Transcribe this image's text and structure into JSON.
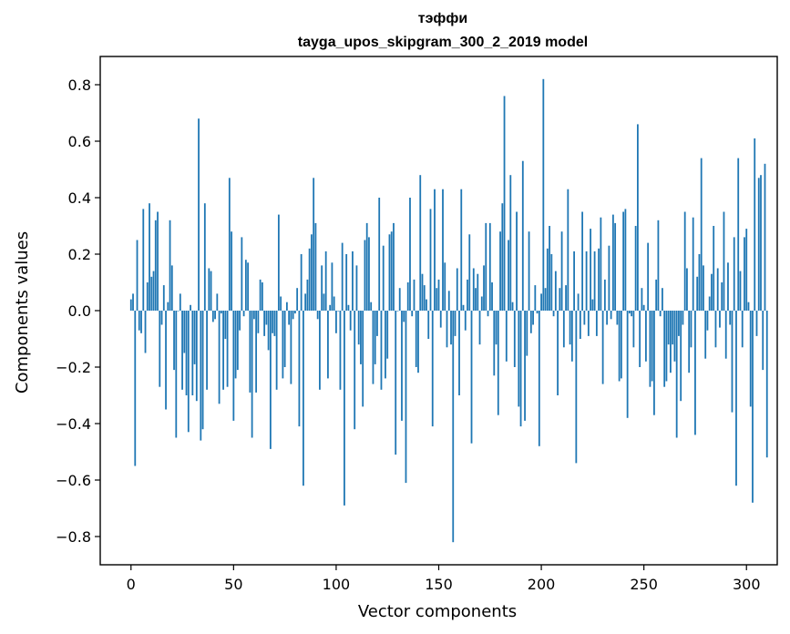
{
  "chart_data": {
    "type": "bar",
    "title_line1": "тэффи",
    "title_line2": "tayga_upos_skipgram_300_2_2019 model",
    "xlabel": "Vector components",
    "ylabel": "Components values",
    "xlim": [
      -15,
      315
    ],
    "ylim": [
      -0.9,
      0.9
    ],
    "xticks": [
      0,
      50,
      100,
      150,
      200,
      250,
      300
    ],
    "yticks": [
      -0.8,
      -0.6,
      -0.4,
      -0.2,
      0.0,
      0.2,
      0.4,
      0.6,
      0.8
    ],
    "ytick_labels": [
      "−0.8",
      "−0.6",
      "−0.4",
      "−0.2",
      "0.0",
      "0.2",
      "0.4",
      "0.6",
      "0.8"
    ],
    "bar_color": "#1f77b4",
    "values": [
      0.04,
      0.06,
      -0.55,
      0.25,
      -0.07,
      -0.08,
      0.36,
      -0.15,
      0.1,
      0.38,
      0.12,
      0.14,
      0.32,
      0.35,
      -0.27,
      -0.05,
      0.09,
      -0.35,
      0.03,
      0.32,
      0.16,
      -0.21,
      -0.45,
      0.0,
      0.06,
      -0.28,
      -0.15,
      -0.3,
      -0.43,
      0.02,
      -0.3,
      -0.19,
      -0.32,
      0.68,
      -0.46,
      -0.42,
      0.38,
      -0.28,
      0.15,
      0.14,
      -0.04,
      -0.03,
      0.06,
      -0.33,
      -0.01,
      -0.28,
      -0.1,
      -0.27,
      0.47,
      0.28,
      -0.39,
      -0.24,
      -0.21,
      -0.07,
      0.26,
      -0.02,
      0.18,
      0.17,
      -0.29,
      -0.45,
      -0.03,
      -0.29,
      -0.08,
      0.11,
      0.1,
      -0.09,
      -0.05,
      -0.14,
      -0.49,
      -0.08,
      -0.09,
      -0.28,
      0.34,
      0.05,
      -0.24,
      -0.2,
      0.03,
      -0.05,
      -0.26,
      -0.03,
      -0.01,
      0.08,
      -0.41,
      0.2,
      -0.62,
      0.06,
      0.11,
      0.22,
      0.27,
      0.47,
      0.31,
      -0.03,
      -0.28,
      0.16,
      0.06,
      0.21,
      -0.24,
      0.02,
      0.17,
      0.05,
      -0.08,
      0.0,
      -0.28,
      0.24,
      -0.69,
      0.2,
      0.02,
      -0.07,
      0.21,
      -0.42,
      0.16,
      -0.12,
      -0.19,
      -0.34,
      0.25,
      0.31,
      0.26,
      0.03,
      -0.26,
      -0.19,
      -0.09,
      0.4,
      -0.28,
      0.23,
      -0.24,
      -0.17,
      0.27,
      0.28,
      0.31,
      -0.51,
      0.0,
      0.08,
      -0.39,
      -0.04,
      -0.61,
      0.1,
      0.4,
      -0.02,
      0.11,
      -0.2,
      -0.22,
      0.48,
      0.13,
      0.09,
      0.04,
      -0.1,
      0.36,
      -0.41,
      0.43,
      0.08,
      0.11,
      -0.06,
      0.43,
      0.17,
      -0.13,
      0.07,
      -0.12,
      -0.82,
      -0.09,
      0.15,
      -0.3,
      0.43,
      0.02,
      -0.07,
      0.11,
      0.27,
      -0.47,
      0.15,
      0.08,
      0.13,
      -0.12,
      0.05,
      0.16,
      0.31,
      -0.02,
      0.31,
      0.1,
      -0.23,
      -0.12,
      -0.37,
      0.28,
      0.38,
      0.76,
      -0.18,
      0.25,
      0.48,
      0.03,
      -0.2,
      0.35,
      -0.34,
      -0.41,
      0.53,
      -0.39,
      -0.16,
      0.28,
      -0.08,
      -0.05,
      0.09,
      -0.01,
      -0.48,
      0.06,
      0.82,
      0.08,
      0.22,
      0.3,
      0.2,
      -0.02,
      0.14,
      -0.3,
      0.08,
      0.28,
      -0.13,
      0.09,
      0.43,
      -0.12,
      -0.18,
      0.21,
      -0.54,
      0.06,
      -0.1,
      0.35,
      -0.05,
      0.21,
      -0.09,
      0.29,
      0.04,
      0.21,
      -0.09,
      0.22,
      0.33,
      -0.26,
      0.11,
      -0.05,
      0.23,
      -0.03,
      0.34,
      0.31,
      -0.05,
      -0.25,
      -0.24,
      0.35,
      0.36,
      -0.38,
      -0.01,
      -0.02,
      -0.13,
      0.3,
      0.66,
      -0.2,
      0.08,
      0.02,
      -0.18,
      0.24,
      -0.27,
      -0.25,
      -0.37,
      0.11,
      0.32,
      -0.02,
      0.08,
      -0.27,
      -0.25,
      -0.12,
      -0.22,
      -0.12,
      -0.18,
      -0.45,
      -0.09,
      -0.32,
      -0.05,
      0.35,
      0.15,
      -0.22,
      -0.13,
      0.33,
      -0.44,
      0.12,
      0.2,
      0.54,
      0.16,
      -0.17,
      -0.07,
      0.05,
      0.13,
      0.3,
      -0.13,
      0.15,
      -0.06,
      0.1,
      0.35,
      -0.17,
      0.17,
      -0.05,
      -0.36,
      0.26,
      -0.62,
      0.54,
      0.14,
      -0.13,
      0.26,
      0.29,
      0.03,
      -0.34,
      -0.68,
      0.61,
      -0.09,
      0.47,
      0.48,
      -0.21,
      0.52,
      -0.52
    ]
  }
}
